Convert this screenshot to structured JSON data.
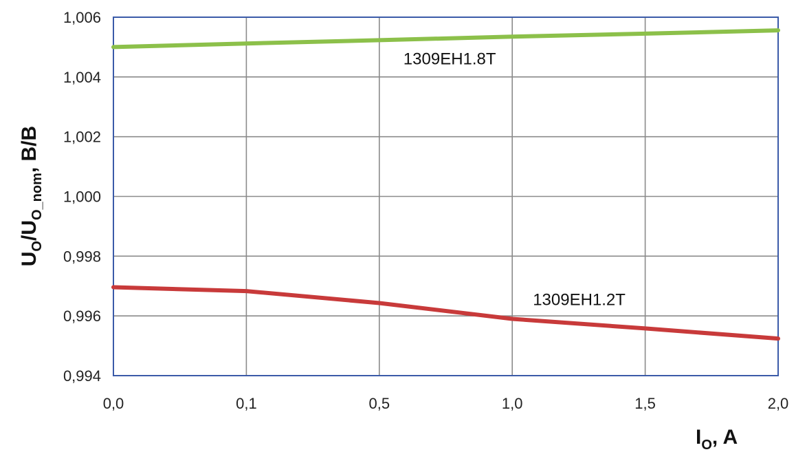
{
  "chart_data": {
    "type": "line",
    "categories": [
      "0,0",
      "0,1",
      "0,5",
      "1,0",
      "1,5",
      "2,0"
    ],
    "series": [
      {
        "name": "1309EH1.8T",
        "color": "#8cc04a",
        "values": [
          1.005,
          1.00512,
          1.00523,
          1.00535,
          1.00545,
          1.00556
        ]
      },
      {
        "name": "1309EH1.2T",
        "color": "#c83a3a",
        "values": [
          0.99696,
          0.99683,
          0.99643,
          0.9959,
          0.99558,
          0.99524
        ]
      }
    ],
    "ylim": [
      0.994,
      1.006
    ],
    "yticks": [
      "0,994",
      "0,996",
      "0,998",
      "1,000",
      "1,002",
      "1,004",
      "1,006"
    ],
    "ylabel": {
      "main_1": "U",
      "sub_1": "O",
      "main_2": "/U",
      "sub_2": "O_nom",
      "main_3": ", B/B"
    },
    "xlabel": {
      "main_1": "I",
      "sub_1": "O",
      "main_2": ", A"
    },
    "grid": true,
    "legend": "inline labels"
  }
}
